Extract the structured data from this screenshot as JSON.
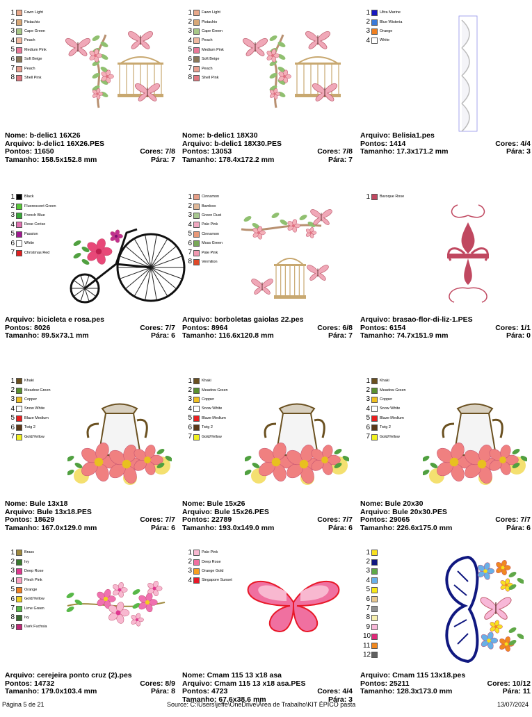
{
  "items": [
    {
      "nome": "b-delic1 16X26",
      "arquivo": "b-delic1 16X26.PES",
      "pontos": "11650",
      "cores": "7/8",
      "tamanho": "158.5x152.8 mm",
      "paradas": "7",
      "colors": [
        {
          "n": "1",
          "c": "#e8a88a",
          "name": "Fawn Light"
        },
        {
          "n": "2",
          "c": "#d8a878",
          "name": "Pistachio"
        },
        {
          "n": "3",
          "c": "#a8c888",
          "name": "Cape Green"
        },
        {
          "n": "4",
          "c": "#f0b8a0",
          "name": "Peach"
        },
        {
          "n": "5",
          "c": "#e87898",
          "name": "Medium Pink"
        },
        {
          "n": "6",
          "c": "#8a7858",
          "name": "Soft Beige"
        },
        {
          "n": "7",
          "c": "#e8a090",
          "name": "Peach"
        },
        {
          "n": "8",
          "c": "#e07880",
          "name": "Shell Pink"
        }
      ]
    },
    {
      "nome": "b-delic1 18X30",
      "arquivo": "b-delic1 18X30.PES",
      "pontos": "13053",
      "cores": "7/8",
      "tamanho": "178.4x172.2 mm",
      "paradas": "7",
      "colors": [
        {
          "n": "1",
          "c": "#e8a88a",
          "name": "Fawn Light"
        },
        {
          "n": "2",
          "c": "#d8a878",
          "name": "Pistachio"
        },
        {
          "n": "3",
          "c": "#a8c888",
          "name": "Cape Green"
        },
        {
          "n": "4",
          "c": "#f0b8a0",
          "name": "Peach"
        },
        {
          "n": "5",
          "c": "#e87898",
          "name": "Medium Pink"
        },
        {
          "n": "6",
          "c": "#8a7858",
          "name": "Soft Beige"
        },
        {
          "n": "7",
          "c": "#e8a090",
          "name": "Peach"
        },
        {
          "n": "8",
          "c": "#e07880",
          "name": "Shell Pink"
        }
      ]
    },
    {
      "nome": "",
      "arquivo": "Belisia1.pes",
      "pontos": "1414",
      "cores": "4/4",
      "tamanho": "17.3x171.2 mm",
      "paradas": "3",
      "colors": [
        {
          "n": "1",
          "c": "#1818c0",
          "name": "Ultra Marine"
        },
        {
          "n": "2",
          "c": "#3a7ad8",
          "name": "Blue Wisteria"
        },
        {
          "n": "3",
          "c": "#f08020",
          "name": "Orange"
        },
        {
          "n": "4",
          "c": "#ffffff",
          "name": "White"
        }
      ]
    },
    {
      "nome": "",
      "arquivo": "bicicleta e rosa.pes",
      "pontos": "8026",
      "cores": "7/7",
      "tamanho": "89.5x73.1 mm",
      "paradas": "6",
      "colors": [
        {
          "n": "1",
          "c": "#000000",
          "name": "Black"
        },
        {
          "n": "2",
          "c": "#58c838",
          "name": "Fluorescent Green"
        },
        {
          "n": "3",
          "c": "#38a838",
          "name": "French Blue"
        },
        {
          "n": "4",
          "c": "#e070b0",
          "name": "Rose Cerise"
        },
        {
          "n": "5",
          "c": "#a01890",
          "name": "Passion"
        },
        {
          "n": "6",
          "c": "#ffffff",
          "name": "White"
        },
        {
          "n": "7",
          "c": "#e02020",
          "name": "Christmas Red"
        }
      ]
    },
    {
      "nome": "",
      "arquivo": "borboletas gaiolas 22.pes",
      "pontos": "8964",
      "cores": "6/8",
      "tamanho": "116.6x120.8 mm",
      "paradas": "7",
      "colors": [
        {
          "n": "1",
          "c": "#e8a088",
          "name": "Cinnamon"
        },
        {
          "n": "2",
          "c": "#e0b898",
          "name": "Bamboo"
        },
        {
          "n": "3",
          "c": "#a8c890",
          "name": "Green Dust"
        },
        {
          "n": "4",
          "c": "#f0a8c0",
          "name": "Pale Pink"
        },
        {
          "n": "5",
          "c": "#e89878",
          "name": "Cinnamon"
        },
        {
          "n": "6",
          "c": "#78a858",
          "name": "Moss Green"
        },
        {
          "n": "7",
          "c": "#f098b0",
          "name": "Pale Pink"
        },
        {
          "n": "8",
          "c": "#e04828",
          "name": "Vermilion"
        }
      ]
    },
    {
      "nome": "",
      "arquivo": "brasao-flor-di-liz-1.PES",
      "pontos": "6154",
      "cores": "1/1",
      "tamanho": "74.7x151.9 mm",
      "paradas": "0",
      "colors": [
        {
          "n": "1",
          "c": "#c04860",
          "name": "Baroque Rose"
        }
      ]
    },
    {
      "nome": "Bule 13x18",
      "arquivo": "Bule 13x18.PES",
      "pontos": "18629",
      "cores": "7/7",
      "tamanho": "167.0x129.0 mm",
      "paradas": "6",
      "colors": [
        {
          "n": "1",
          "c": "#6a5020",
          "name": "Khaki"
        },
        {
          "n": "2",
          "c": "#5a9030",
          "name": "Meadow Green"
        },
        {
          "n": "3",
          "c": "#f0c020",
          "name": "Copper"
        },
        {
          "n": "4",
          "c": "#ffffff",
          "name": "Snow White"
        },
        {
          "n": "5",
          "c": "#e82020",
          "name": "Blaze Medium"
        },
        {
          "n": "6",
          "c": "#5a3818",
          "name": "Twig 2"
        },
        {
          "n": "7",
          "c": "#f0f020",
          "name": "Gold/Yellow"
        }
      ]
    },
    {
      "nome": "Bule 15x26",
      "arquivo": "Bule 15x26.PES",
      "pontos": "22789",
      "cores": "7/7",
      "tamanho": "193.0x149.0 mm",
      "paradas": "6",
      "colors": [
        {
          "n": "1",
          "c": "#6a5020",
          "name": "Khaki"
        },
        {
          "n": "2",
          "c": "#5a9030",
          "name": "Meadow Green"
        },
        {
          "n": "3",
          "c": "#f0c020",
          "name": "Copper"
        },
        {
          "n": "4",
          "c": "#ffffff",
          "name": "Snow White"
        },
        {
          "n": "5",
          "c": "#e82020",
          "name": "Blaze Medium"
        },
        {
          "n": "6",
          "c": "#5a3818",
          "name": "Twig 2"
        },
        {
          "n": "7",
          "c": "#f0f020",
          "name": "Gold/Yellow"
        }
      ]
    },
    {
      "nome": "Bule 20x30",
      "arquivo": "Bule 20x30.PES",
      "pontos": "29065",
      "cores": "7/7",
      "tamanho": "226.6x175.0 mm",
      "paradas": "6",
      "colors": [
        {
          "n": "1",
          "c": "#6a5020",
          "name": "Khaki"
        },
        {
          "n": "2",
          "c": "#5a9030",
          "name": "Meadow Green"
        },
        {
          "n": "3",
          "c": "#f0c020",
          "name": "Copper"
        },
        {
          "n": "4",
          "c": "#ffffff",
          "name": "Snow White"
        },
        {
          "n": "5",
          "c": "#e82020",
          "name": "Blaze Medium"
        },
        {
          "n": "6",
          "c": "#5a3818",
          "name": "Twig 2"
        },
        {
          "n": "7",
          "c": "#f0f020",
          "name": "Gold/Yellow"
        }
      ]
    },
    {
      "nome": "",
      "arquivo": "cerejeira ponto cruz (2).pes",
      "pontos": "14732",
      "cores": "8/9",
      "tamanho": "179.0x103.4 mm",
      "paradas": "8",
      "colors": [
        {
          "n": "1",
          "c": "#a08a40",
          "name": "Brass"
        },
        {
          "n": "2",
          "c": "#3a7a30",
          "name": "Ivy"
        },
        {
          "n": "3",
          "c": "#e03890",
          "name": "Deep Rose"
        },
        {
          "n": "4",
          "c": "#f8a0c0",
          "name": "Flesh Pink"
        },
        {
          "n": "5",
          "c": "#f08020",
          "name": "Orange"
        },
        {
          "n": "6",
          "c": "#f0d020",
          "name": "Gold/Yellow"
        },
        {
          "n": "7",
          "c": "#58b848",
          "name": "Lime Green"
        },
        {
          "n": "8",
          "c": "#3a6a30",
          "name": "Ivy"
        },
        {
          "n": "9",
          "c": "#c02878",
          "name": "Dark Fuchsia"
        }
      ]
    },
    {
      "nome": "Cmam 115 13 x18 asa",
      "arquivo": "Cmam 115 13 x18 asa.PES",
      "pontos": "4723",
      "cores": "4/4",
      "tamanho": "67.6x38.6 mm",
      "paradas": "3",
      "colors": [
        {
          "n": "1",
          "c": "#f8b8d0",
          "name": "Pale Pink"
        },
        {
          "n": "2",
          "c": "#f070a0",
          "name": "Deep Rose"
        },
        {
          "n": "3",
          "c": "#f8a020",
          "name": "Orange Gold"
        },
        {
          "n": "4",
          "c": "#e81828",
          "name": "Singapore Sunset"
        }
      ]
    },
    {
      "nome": "",
      "arquivo": "Cmam 115 13x18.pes",
      "pontos": "25211",
      "cores": "10/12",
      "tamanho": "128.3x173.0 mm",
      "paradas": "11",
      "colors": [
        {
          "n": "1",
          "c": "#f8e020",
          "name": ""
        },
        {
          "n": "2",
          "c": "#101880",
          "name": ""
        },
        {
          "n": "3",
          "c": "#60a848",
          "name": ""
        },
        {
          "n": "4",
          "c": "#68b0e8",
          "name": ""
        },
        {
          "n": "5",
          "c": "#f8e818",
          "name": ""
        },
        {
          "n": "6",
          "c": "#e8c890",
          "name": ""
        },
        {
          "n": "7",
          "c": "#909090",
          "name": ""
        },
        {
          "n": "8",
          "c": "#f8f0b0",
          "name": ""
        },
        {
          "n": "9",
          "c": "#f8b8d8",
          "name": ""
        },
        {
          "n": "10",
          "c": "#e02878",
          "name": ""
        },
        {
          "n": "11",
          "c": "#f08820",
          "name": ""
        },
        {
          "n": "12",
          "c": "#606060",
          "name": ""
        }
      ]
    }
  ],
  "labels": {
    "nome": "Nome: ",
    "arquivo": "Arquivo: ",
    "pontos": "Pontos: ",
    "cores": "Cores: ",
    "tamanho": "Tamanho: ",
    "paradas": "Pára: "
  },
  "footer": {
    "page": "Página 5 de 21",
    "source": "Source: C:\\Users\\jeffe\\OneDrive\\Área de Trabalho\\KIT ÉPICO pasta",
    "date": "13/07/2024"
  }
}
